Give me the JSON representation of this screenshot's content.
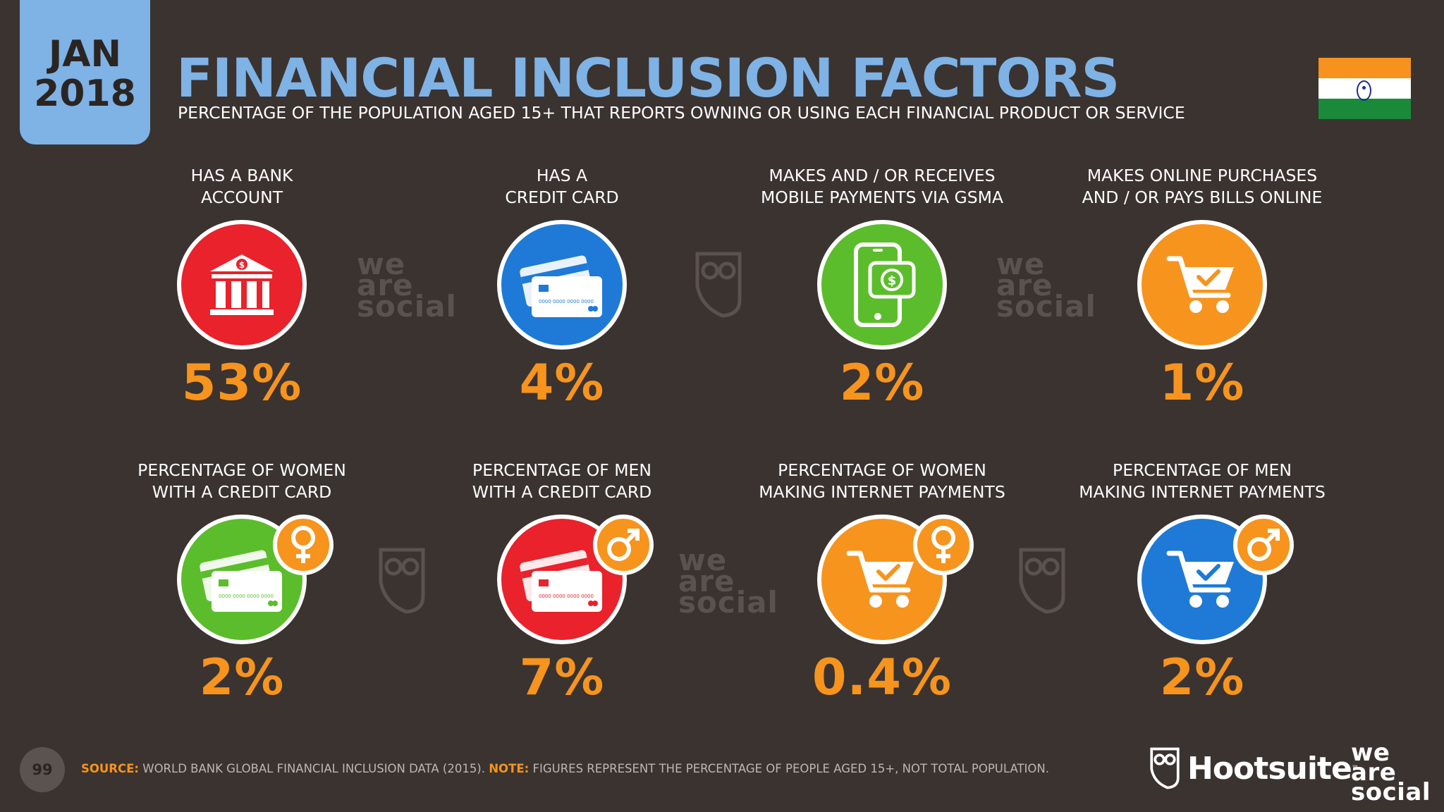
{
  "header": {
    "date_month": "JAN",
    "date_year": "2018",
    "title": "FINANCIAL INCLUSION FACTORS",
    "subtitle": "PERCENTAGE OF THE POPULATION AGED 15+ THAT REPORTS OWNING OR USING EACH FINANCIAL PRODUCT OR SERVICE"
  },
  "flag": {
    "icon": "india-flag-icon"
  },
  "metrics": [
    {
      "line1": "HAS A BANK",
      "line2": "ACCOUNT",
      "value": "53%",
      "icon": "bank-icon",
      "color": "#e9222b"
    },
    {
      "line1": "HAS A",
      "line2": "CREDIT CARD",
      "value": "4%",
      "icon": "credit-card-icon",
      "color": "#1e7ad6"
    },
    {
      "line1": "MAKES AND / OR RECEIVES",
      "line2": "MOBILE PAYMENTS VIA GSMA",
      "value": "2%",
      "icon": "mobile-payment-icon",
      "color": "#5bbd2b"
    },
    {
      "line1": "MAKES ONLINE PURCHASES",
      "line2": "AND / OR PAYS BILLS ONLINE",
      "value": "1%",
      "icon": "shopping-cart-icon",
      "color": "#f7941d"
    },
    {
      "line1": "PERCENTAGE OF WOMEN",
      "line2": "WITH A CREDIT CARD",
      "value": "2%",
      "icon": "credit-card-icon",
      "color": "#5bbd2b",
      "badge": "female-symbol-icon"
    },
    {
      "line1": "PERCENTAGE OF MEN",
      "line2": "WITH A CREDIT CARD",
      "value": "7%",
      "icon": "credit-card-icon",
      "color": "#e9222b",
      "badge": "male-symbol-icon"
    },
    {
      "line1": "PERCENTAGE OF WOMEN",
      "line2": "MAKING INTERNET PAYMENTS",
      "value": "0.4%",
      "icon": "shopping-cart-icon",
      "color": "#f7941d",
      "badge": "female-symbol-icon"
    },
    {
      "line1": "PERCENTAGE OF MEN",
      "line2": "MAKING INTERNET PAYMENTS",
      "value": "2%",
      "icon": "shopping-cart-icon",
      "color": "#1e7ad6",
      "badge": "male-symbol-icon"
    }
  ],
  "card_number_text": "0000 0000 0000 0000",
  "watermark": {
    "line1": "we",
    "line2": "are",
    "line3": "social"
  },
  "footer": {
    "page_number": "99",
    "source_label": "SOURCE:",
    "source_text": "WORLD BANK GLOBAL FINANCIAL INCLUSION DATA (2015).",
    "note_label": "NOTE:",
    "note_text": "FIGURES REPRESENT THE PERCENTAGE OF PEOPLE AGED 15+, NOT TOTAL POPULATION.",
    "hootsuite": "Hootsuite",
    "tm": "™",
    "logo_line1": "we",
    "logo_line2": "are",
    "logo_line3": "social"
  }
}
